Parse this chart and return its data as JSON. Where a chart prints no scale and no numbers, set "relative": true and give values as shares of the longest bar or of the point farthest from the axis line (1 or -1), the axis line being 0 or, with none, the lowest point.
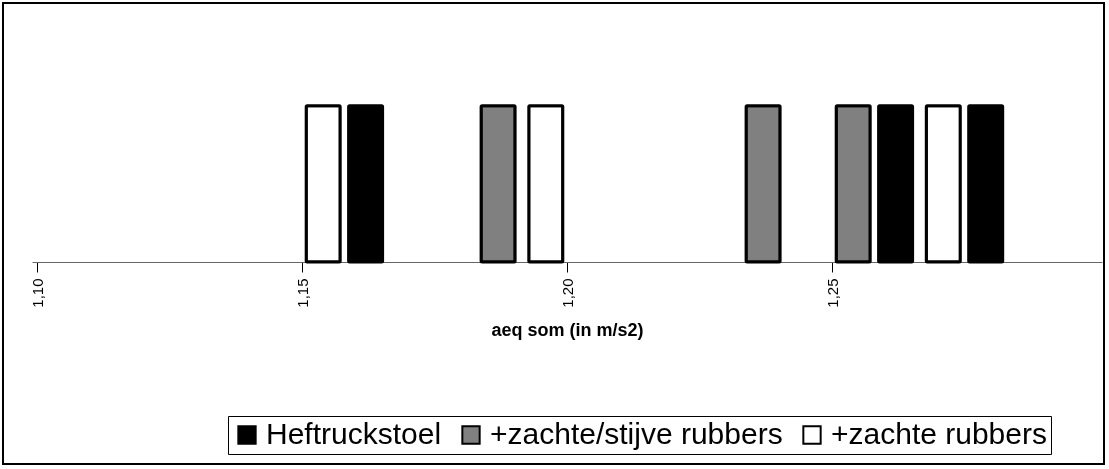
{
  "chart_data": {
    "type": "bar",
    "relative": true,
    "xlabel": "aeq som (in m/s2)",
    "xlim": [
      1.1,
      1.3
    ],
    "xticks": [
      {
        "value": 1.1,
        "label": "1,10"
      },
      {
        "value": 1.15,
        "label": "1,15"
      },
      {
        "value": 1.2,
        "label": "1,20"
      },
      {
        "value": 1.25,
        "label": "1,25"
      }
    ],
    "x": [
      1.154,
      1.162,
      1.187,
      1.196,
      1.237,
      1.254,
      1.262,
      1.271,
      1.279
    ],
    "series": [
      {
        "name": "Heftruckstoel",
        "color": "#000000",
        "values": [
          null,
          1,
          null,
          null,
          null,
          null,
          1,
          null,
          1
        ]
      },
      {
        "name": "+zachte/stijve rubbers",
        "color": "#808080",
        "values": [
          null,
          null,
          1,
          null,
          1,
          1,
          null,
          null,
          null
        ]
      },
      {
        "name": "+zachte rubbers",
        "color": "#ffffff",
        "values": [
          1,
          null,
          null,
          1,
          null,
          null,
          null,
          1,
          null
        ]
      }
    ],
    "grid": false,
    "legend": "bottom"
  }
}
